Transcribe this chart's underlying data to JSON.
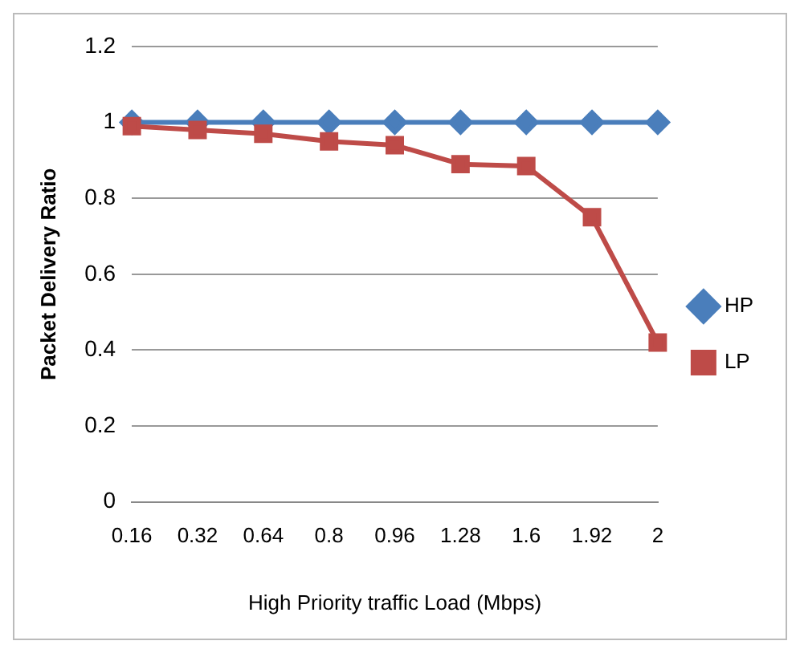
{
  "chart_data": {
    "type": "line",
    "xlabel": "High Priority traffic Load (Mbps)",
    "ylabel": "Packet Delivery Ratio",
    "categories": [
      "0.16",
      "0.32",
      "0.64",
      "0.8",
      "0.96",
      "1.28",
      "1.6",
      "1.92",
      "2"
    ],
    "series": [
      {
        "name": "HP",
        "color": "#4a7ebb",
        "marker": "diamond",
        "values": [
          1,
          1,
          1,
          1,
          1,
          1,
          1,
          1,
          1
        ]
      },
      {
        "name": "LP",
        "color": "#be4b48",
        "marker": "square",
        "values": [
          0.99,
          0.98,
          0.97,
          0.95,
          0.94,
          0.89,
          0.885,
          0.75,
          0.42
        ]
      }
    ],
    "ylim": [
      0,
      1.2
    ],
    "yticks": [
      0,
      0.2,
      0.4,
      0.6,
      0.8,
      1,
      1.2
    ],
    "grid": "y",
    "legend": "right",
    "line_style": "solid"
  }
}
